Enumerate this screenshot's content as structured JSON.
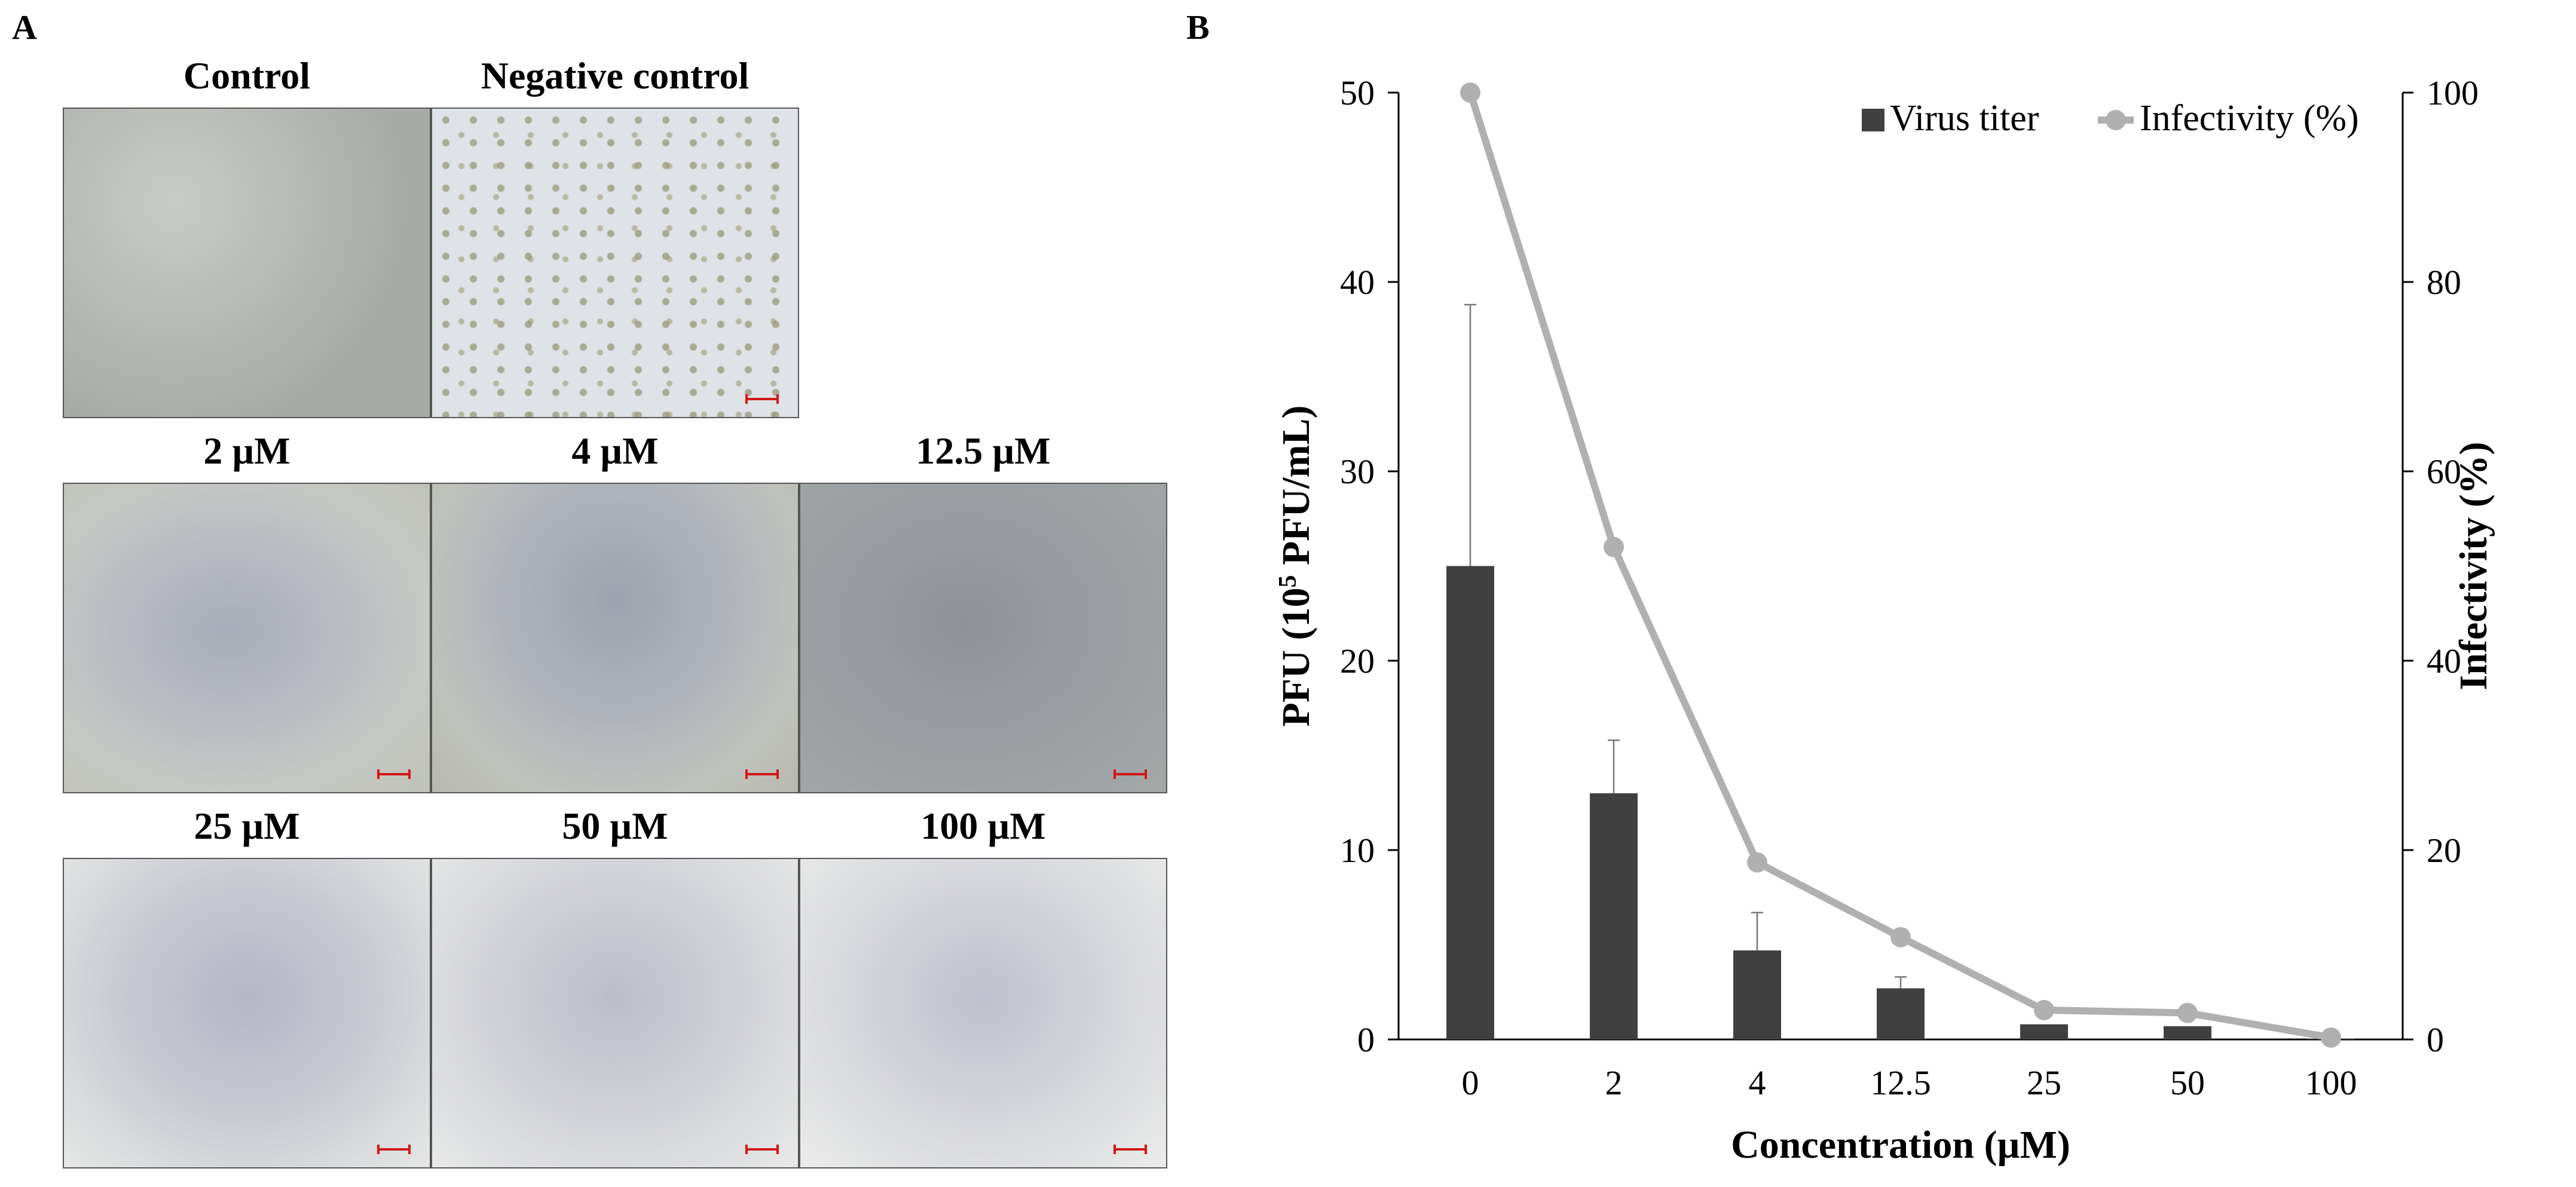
{
  "panel_a": {
    "letter": "A",
    "rows": [
      [
        {
          "label": "Control",
          "texture": "tex-confluent",
          "scalebar": false
        },
        {
          "label": "Negative control",
          "texture": "tex-negative",
          "scalebar": true
        }
      ],
      [
        {
          "label": "2 µM",
          "texture": "tex-plaque-a",
          "scalebar": true
        },
        {
          "label": "4 µM",
          "texture": "tex-plaque-b",
          "scalebar": true
        },
        {
          "label": "12.5 µM",
          "texture": "tex-plaque-c",
          "scalebar": true
        }
      ],
      [
        {
          "label": "25 µM",
          "texture": "tex-plaque-d",
          "scalebar": true
        },
        {
          "label": "50 µM",
          "texture": "tex-plaque-e",
          "scalebar": true
        },
        {
          "label": "100 µM",
          "texture": "tex-plaque-f",
          "scalebar": true
        }
      ]
    ]
  },
  "panel_b": {
    "letter": "B"
  },
  "chart_data": {
    "type": "bar",
    "categories": [
      "0",
      "2",
      "4",
      "12.5",
      "25",
      "50",
      "100"
    ],
    "xlabel": "Concentration (µM)",
    "ylabel_left": {
      "main": "PFU (10",
      "superscript": "5",
      "rest": " PFU/mL)"
    },
    "ylabel_right": "Infectivity (%)",
    "ylim_left": [
      0,
      50
    ],
    "yticks_left": [
      0,
      10,
      20,
      30,
      40,
      50
    ],
    "ylim_right": [
      0,
      100
    ],
    "yticks_right": [
      0,
      20,
      40,
      60,
      80,
      100
    ],
    "legend_position": "top-right",
    "grid": false,
    "series": [
      {
        "name": "Virus titer",
        "kind": "bar",
        "axis": "left",
        "color": "#404040",
        "values": [
          25.0,
          13.0,
          4.7,
          2.7,
          0.8,
          0.7,
          0.05
        ],
        "error": [
          13.8,
          2.8,
          2.0,
          0.6,
          0,
          0,
          0
        ]
      },
      {
        "name": "Infectivity (%)",
        "kind": "line",
        "axis": "right",
        "color": "#b0b0b0",
        "values": [
          100,
          52,
          18.7,
          10.8,
          3.1,
          2.8,
          0.2
        ]
      }
    ]
  }
}
